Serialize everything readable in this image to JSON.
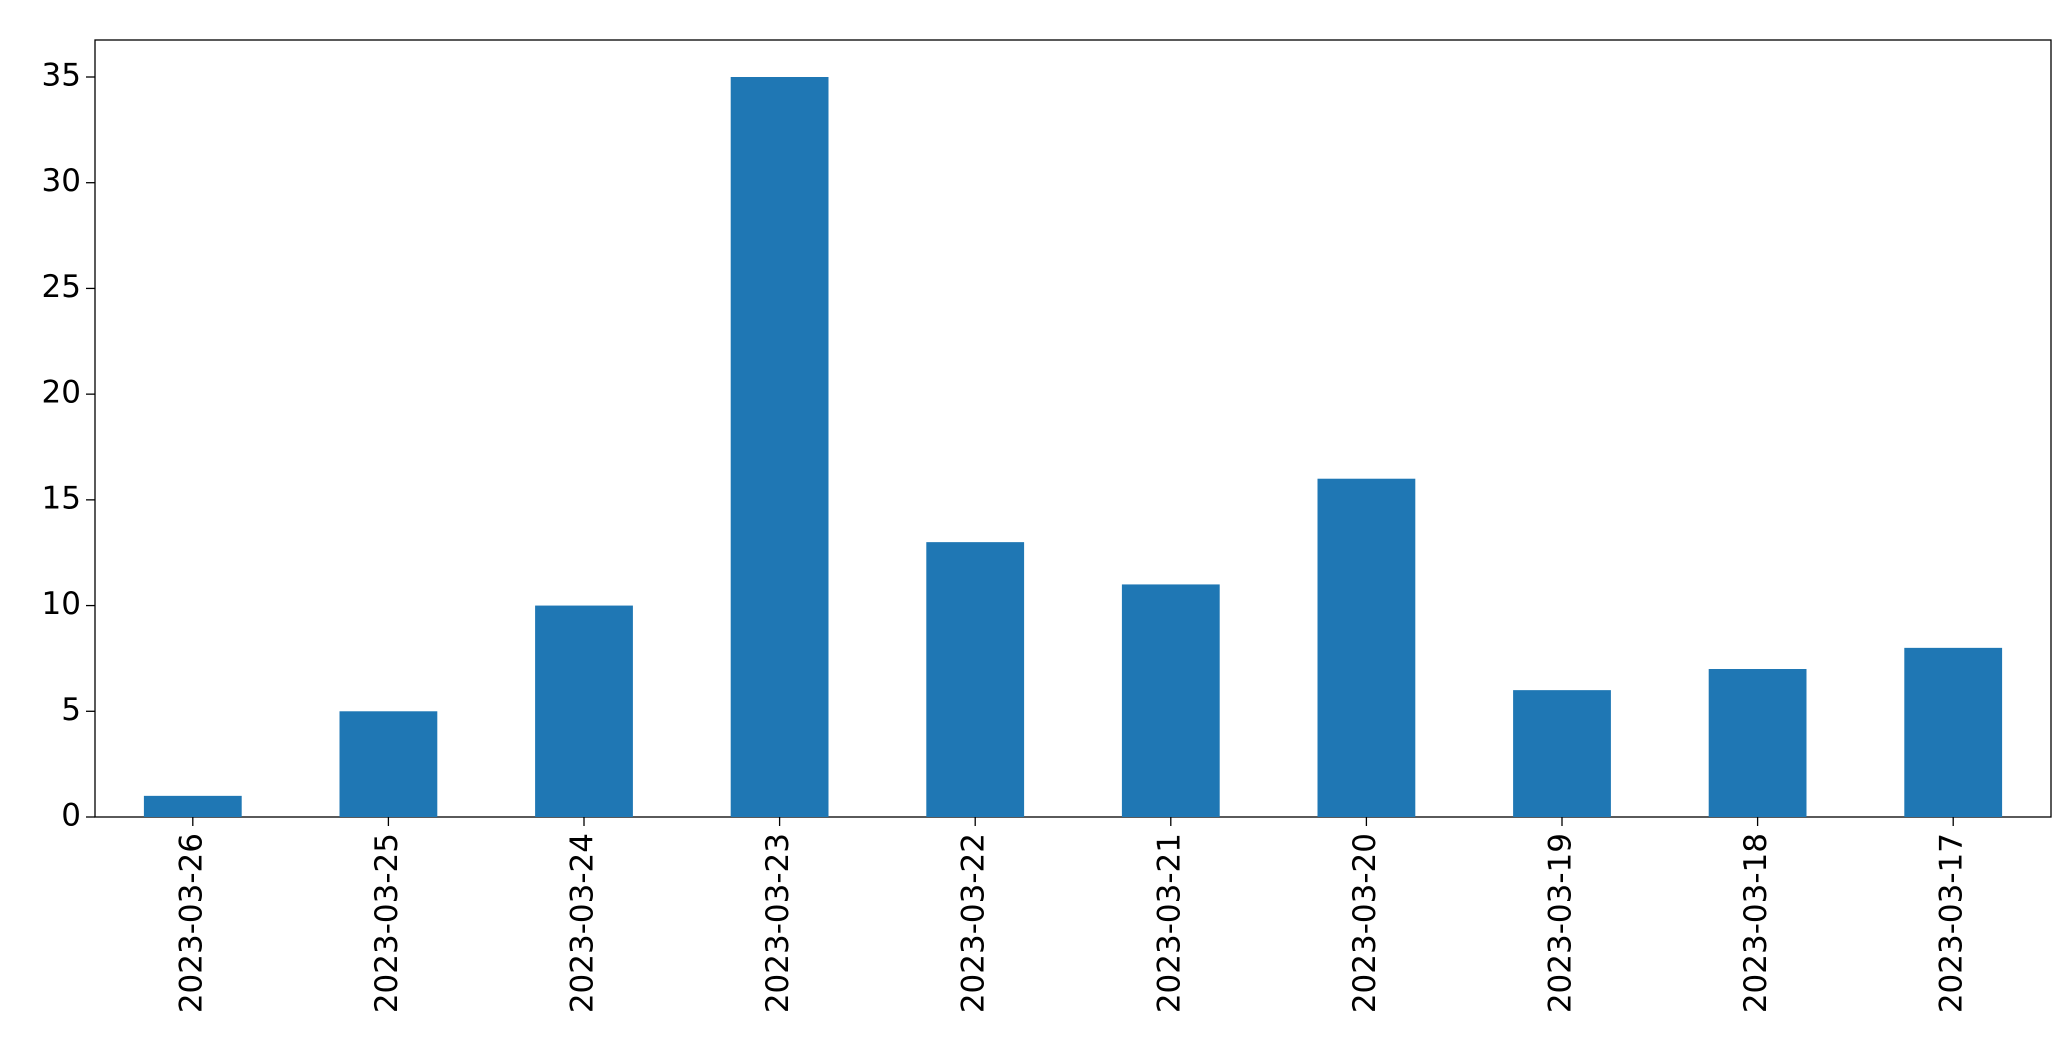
{
  "chart_data": {
    "type": "bar",
    "categories": [
      "2023-03-26",
      "2023-03-25",
      "2023-03-24",
      "2023-03-23",
      "2023-03-22",
      "2023-03-21",
      "2023-03-20",
      "2023-03-19",
      "2023-03-18",
      "2023-03-17"
    ],
    "values": [
      1,
      5,
      10,
      35,
      13,
      11,
      16,
      6,
      7,
      8
    ],
    "color": "#1f77b4",
    "ylim": [
      0,
      36.75
    ],
    "yticks": [
      0,
      5,
      10,
      15,
      20,
      25,
      30,
      35
    ],
    "grid": false
  }
}
